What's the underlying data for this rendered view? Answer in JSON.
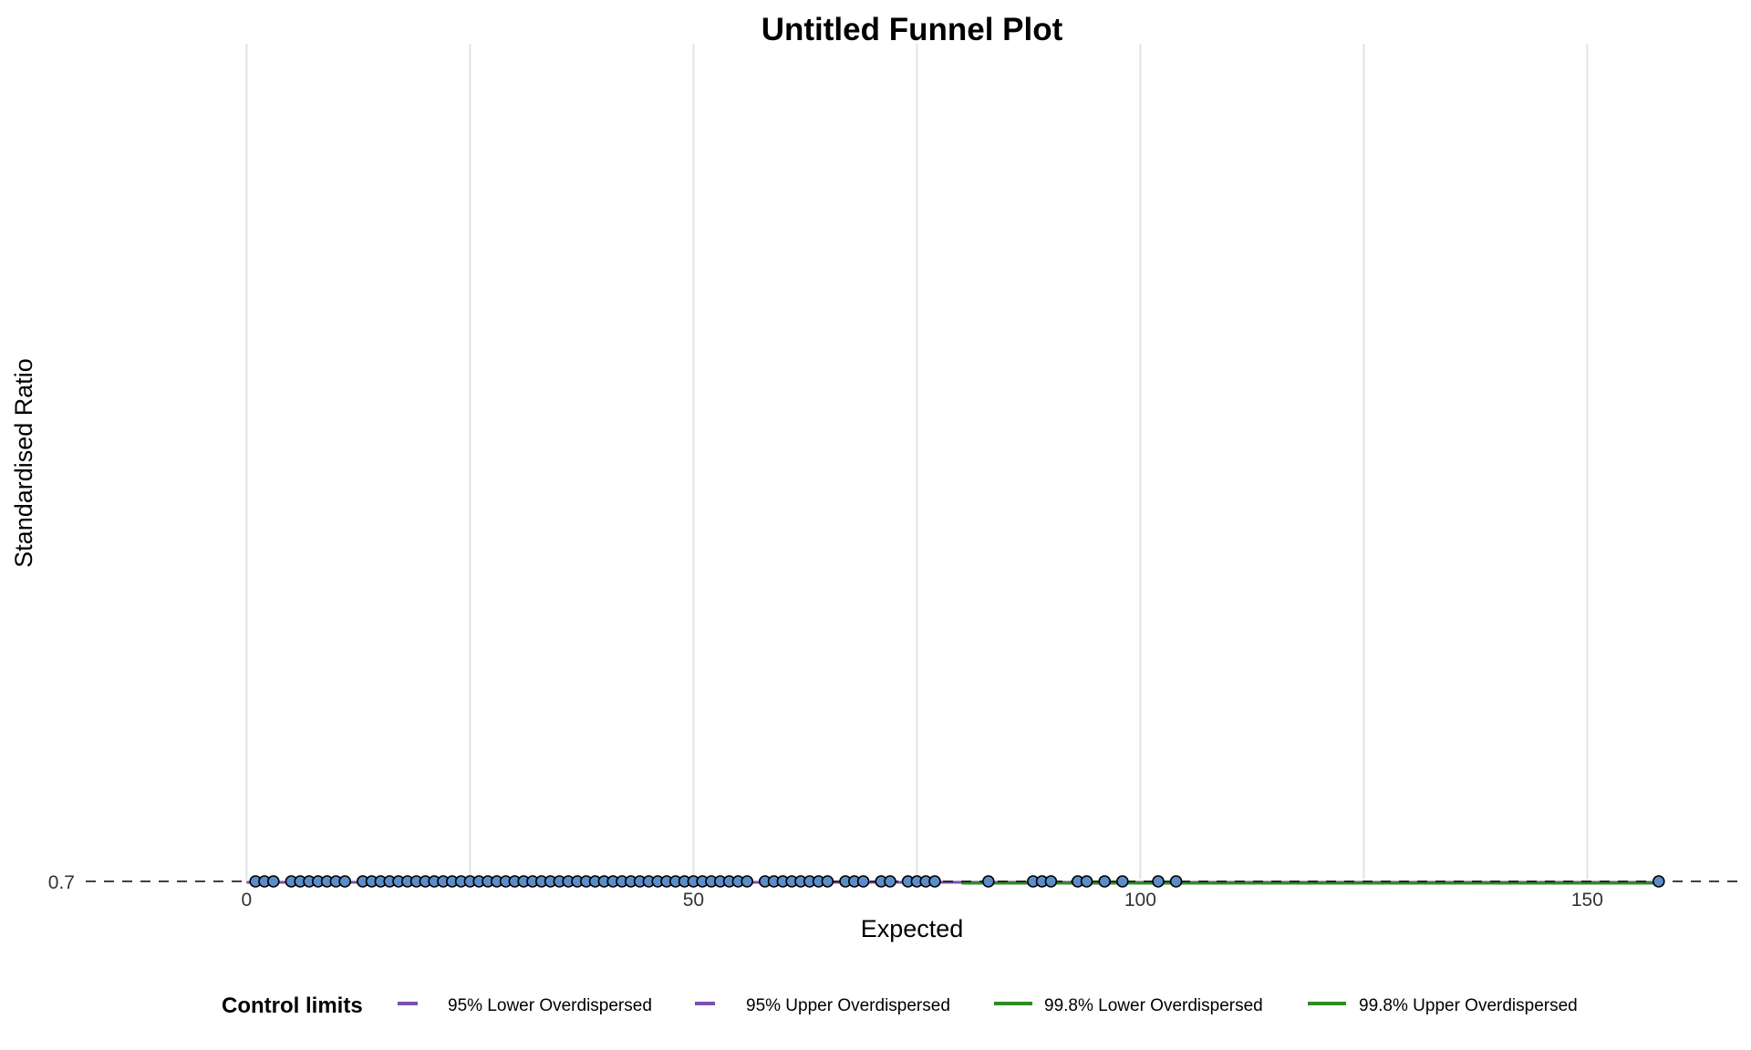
{
  "chart_data": {
    "type": "scatter",
    "title": "Untitled Funnel Plot",
    "xlabel": "Expected",
    "ylabel": "Standardised Ratio",
    "xlim": [
      -18,
      167
    ],
    "x_ticks": [
      0,
      50,
      100,
      150
    ],
    "x_tick_labels": [
      "0",
      "50",
      "100",
      "150"
    ],
    "y_ticks": [
      0.7
    ],
    "y_tick_labels": [
      "0.7"
    ],
    "grid": "vertical",
    "target_line": {
      "y": 0.7,
      "style": "dashed",
      "color": "#000000"
    },
    "points": {
      "name": "",
      "color": "#5B8DC9",
      "edge_color": "#000000",
      "y": 0.7,
      "x": [
        1,
        2,
        3,
        5,
        6,
        7,
        8,
        9,
        10,
        11,
        13,
        14,
        15,
        16,
        17,
        18,
        19,
        20,
        21,
        22,
        23,
        24,
        25,
        26,
        27,
        28,
        29,
        30,
        31,
        32,
        33,
        34,
        35,
        36,
        37,
        38,
        39,
        40,
        41,
        42,
        43,
        44,
        45,
        46,
        47,
        48,
        49,
        50,
        51,
        52,
        53,
        54,
        55,
        56,
        58,
        59,
        60,
        61,
        62,
        63,
        64,
        65,
        67,
        68,
        69,
        71,
        72,
        74,
        75,
        76,
        77,
        83,
        88,
        89,
        90,
        93,
        94,
        96,
        98,
        102,
        104,
        158
      ]
    },
    "control_limits": [
      {
        "name": "95% Lower Overdispersed",
        "color": "#7B4FAE",
        "x_range": [
          0,
          158
        ],
        "y": 0.7
      },
      {
        "name": "95% Upper Overdispersed",
        "color": "#7B4FAE",
        "x_range": [
          0,
          158
        ],
        "y": 0.7
      },
      {
        "name": "99.8% Lower Overdispersed",
        "color": "#2E8B22",
        "x_range": [
          0,
          158
        ],
        "y": 0.7
      },
      {
        "name": "99.8% Upper Overdispersed",
        "color": "#2E8B22",
        "x_range": [
          0,
          158
        ],
        "y": 0.7
      }
    ],
    "legend": {
      "title": "Control limits",
      "position": "bottom",
      "entries": [
        "95% Lower Overdispersed",
        "95% Upper Overdispersed",
        "99.8% Lower Overdispersed",
        "99.8% Upper Overdispersed"
      ]
    }
  }
}
